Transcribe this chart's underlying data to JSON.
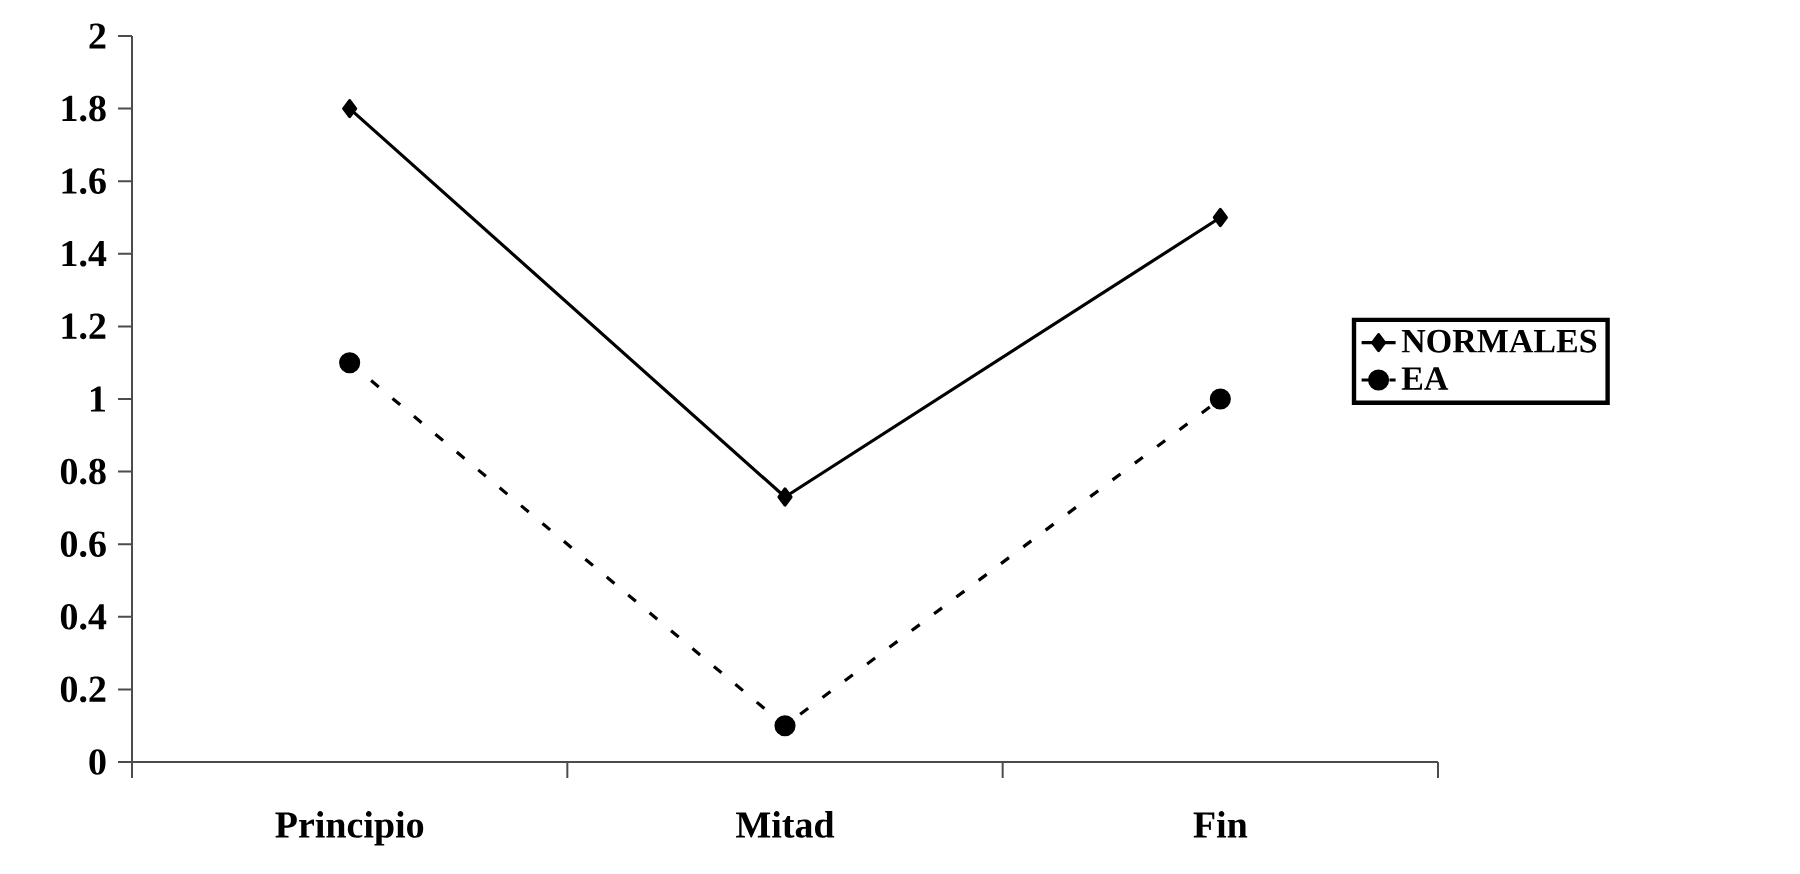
{
  "chart_data": {
    "type": "line",
    "categories": [
      "Principio",
      "Mitad",
      "Fin"
    ],
    "series": [
      {
        "name": "NORMALES",
        "color": "#000000",
        "values": [
          1.8,
          0.73,
          1.5
        ],
        "marker": "diamond",
        "line_style": "solid"
      },
      {
        "name": "EA",
        "color": "#000000",
        "values": [
          1.1,
          0.1,
          1.0
        ],
        "marker": "circle",
        "line_style": "dashed"
      }
    ],
    "ylim": [
      0,
      2
    ],
    "yticks": [
      0,
      0.2,
      0.4,
      0.6,
      0.8,
      1,
      1.2,
      1.4,
      1.6,
      1.8,
      2
    ],
    "grid": false,
    "legend": "right"
  }
}
